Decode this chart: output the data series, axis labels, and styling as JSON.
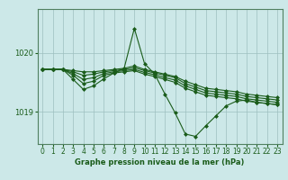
{
  "background_color": "#cce8e8",
  "plot_bg_color": "#cce8e8",
  "grid_color": "#9dbfbf",
  "line_color": "#1a5c1a",
  "title": "Graphe pression niveau de la mer (hPa)",
  "xlim": [
    -0.5,
    23.5
  ],
  "ylim": [
    1018.45,
    1020.75
  ],
  "yticks": [
    1019,
    1020
  ],
  "xticks": [
    0,
    1,
    2,
    3,
    4,
    5,
    6,
    7,
    8,
    9,
    10,
    11,
    12,
    13,
    14,
    15,
    16,
    17,
    18,
    19,
    20,
    21,
    22,
    23
  ],
  "series": [
    [
      1019.72,
      1019.72,
      1019.72,
      1019.7,
      1019.68,
      1019.68,
      1019.7,
      1019.72,
      1019.74,
      1019.78,
      1019.72,
      1019.68,
      1019.64,
      1019.6,
      1019.52,
      1019.46,
      1019.4,
      1019.38,
      1019.36,
      1019.34,
      1019.3,
      1019.28,
      1019.26,
      1019.24
    ],
    [
      1019.72,
      1019.72,
      1019.72,
      1019.68,
      1019.62,
      1019.64,
      1019.68,
      1019.7,
      1019.72,
      1019.75,
      1019.7,
      1019.66,
      1019.62,
      1019.58,
      1019.48,
      1019.42,
      1019.36,
      1019.34,
      1019.32,
      1019.3,
      1019.26,
      1019.24,
      1019.22,
      1019.2
    ],
    [
      1019.72,
      1019.72,
      1019.72,
      1019.65,
      1019.55,
      1019.58,
      1019.65,
      1019.68,
      1019.7,
      1019.72,
      1019.67,
      1019.63,
      1019.58,
      1019.54,
      1019.44,
      1019.38,
      1019.32,
      1019.3,
      1019.28,
      1019.26,
      1019.22,
      1019.2,
      1019.18,
      1019.16
    ],
    [
      1019.72,
      1019.72,
      1019.72,
      1019.62,
      1019.48,
      1019.52,
      1019.62,
      1019.66,
      1019.68,
      1019.7,
      1019.64,
      1019.6,
      1019.55,
      1019.5,
      1019.4,
      1019.34,
      1019.28,
      1019.26,
      1019.24,
      1019.22,
      1019.18,
      1019.16,
      1019.14,
      1019.12
    ],
    [
      1019.72,
      1019.72,
      1019.72,
      1019.55,
      1019.38,
      1019.44,
      1019.56,
      1019.66,
      1019.74,
      1020.42,
      1019.82,
      1019.64,
      1019.3,
      1018.98,
      1018.62,
      1018.58,
      1018.76,
      1018.93,
      1019.1,
      1019.18,
      1019.2,
      1019.16,
      1019.14,
      1019.12
    ]
  ],
  "marker": "D",
  "markersize": 2.0,
  "linewidth": 0.8,
  "xlabel_fontsize": 6.0,
  "tick_fontsize": 5.5,
  "ytick_fontsize": 6.0
}
